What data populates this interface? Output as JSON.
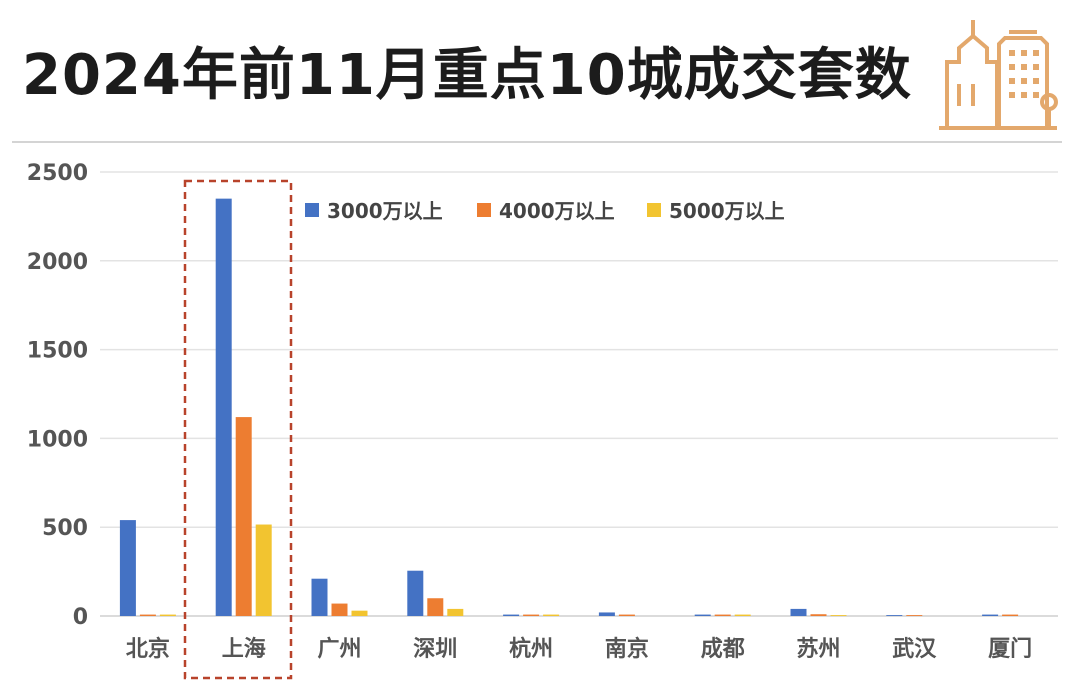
{
  "title": "2024年前11月重点10城成交套数",
  "colors": {
    "series1": "#4472C4",
    "series2": "#ED7D31",
    "series3": "#F2C430",
    "highlight_border": "#B8432B",
    "icon": "#E3A86C"
  },
  "icon": "building-icon",
  "chart_data": {
    "type": "bar",
    "categories": [
      "北京",
      "上海",
      "广州",
      "深圳",
      "杭州",
      "南京",
      "成都",
      "苏州",
      "武汉",
      "厦门"
    ],
    "series": [
      {
        "name": "3000万以上",
        "values": [
          540,
          2350,
          210,
          255,
          8,
          20,
          8,
          40,
          5,
          8
        ]
      },
      {
        "name": "4000万以上",
        "values": [
          8,
          1120,
          70,
          100,
          8,
          8,
          8,
          10,
          5,
          8
        ]
      },
      {
        "name": "5000万以上",
        "values": [
          8,
          515,
          30,
          40,
          8,
          0,
          8,
          5,
          0,
          0
        ]
      }
    ],
    "ylim": [
      0,
      2500
    ],
    "yticks": [
      "0",
      "500",
      "1000",
      "1500",
      "2000",
      "2500"
    ],
    "grid": true,
    "legend_position": "top-center",
    "highlighted_category": "上海"
  }
}
